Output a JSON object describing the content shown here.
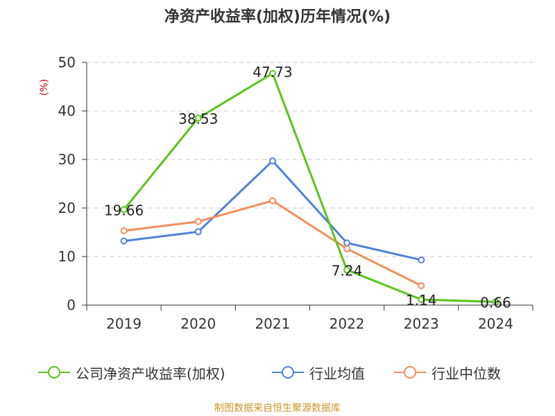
{
  "chart_data": {
    "type": "line",
    "title": "净资产收益率(加权)历年情况(%)",
    "ylabel": "(%)",
    "xlabel": "",
    "categories": [
      "2019",
      "2020",
      "2021",
      "2022",
      "2023",
      "2024"
    ],
    "ylim": [
      0,
      50
    ],
    "yticks": [
      0,
      10,
      20,
      30,
      40,
      50
    ],
    "grid": true,
    "legend_position": "bottom",
    "series": [
      {
        "name": "公司净资产收益率(加权)",
        "color": "#5ac318",
        "values": [
          19.66,
          38.53,
          47.73,
          7.24,
          1.14,
          0.66
        ],
        "labels": [
          "19.66",
          "38.53",
          "47.73",
          "7.24",
          "1.14",
          "0.66"
        ]
      },
      {
        "name": "行业均值",
        "color": "#4f81d9",
        "values": [
          13.2,
          15.1,
          29.7,
          12.8,
          9.3,
          null
        ]
      },
      {
        "name": "行业中位数",
        "color": "#f58c5c",
        "values": [
          15.3,
          17.2,
          21.5,
          11.6,
          4.0,
          null
        ]
      }
    ]
  },
  "source_text": "制图数据来自恒生聚源数据库"
}
